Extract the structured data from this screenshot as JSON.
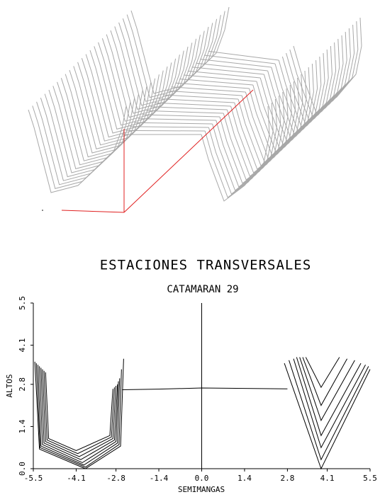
{
  "chart_data": {
    "type": "line",
    "title": "ESTACIONES TRANSVERSALES",
    "subtitle": "CATAMARAN 29",
    "x_label": "SEMIMANGAS",
    "y_label": "ALTOS",
    "xlim": [
      -5.5,
      5.5
    ],
    "ylim": [
      0,
      5.5
    ],
    "xticks": [
      -5.5,
      -4.1,
      -2.8,
      -1.4,
      {
        "value": 0,
        "label": "0.0"
      },
      1.4,
      2.8,
      4.1,
      5.5
    ],
    "yticks": [
      {
        "value": 0,
        "label": "0.0"
      },
      1.4,
      2.8,
      4.1,
      5.5
    ],
    "series": [
      {
        "color": "#000000",
        "x": [
          -5.45,
          -5.3,
          -3.8,
          -2.65,
          -2.55
        ],
        "values": [
          3.55,
          0.65,
          0.0,
          0.75,
          3.65
        ]
      },
      {
        "color": "#000000",
        "x": [
          -5.4,
          -5.28,
          -3.8,
          -2.7,
          -2.62
        ],
        "values": [
          3.5,
          0.7,
          0.05,
          0.8,
          3.3
        ]
      },
      {
        "color": "#000000",
        "x": [
          -5.35,
          -5.25,
          -3.85,
          -2.75,
          -2.68
        ],
        "values": [
          3.45,
          0.75,
          0.12,
          0.85,
          3.0
        ]
      },
      {
        "color": "#000000",
        "x": [
          -5.3,
          -5.2,
          -3.9,
          -2.8,
          -2.72
        ],
        "values": [
          3.4,
          0.8,
          0.2,
          0.9,
          2.9
        ]
      },
      {
        "color": "#000000",
        "x": [
          -5.25,
          -5.15,
          -3.95,
          -2.85,
          -2.75
        ],
        "values": [
          3.35,
          0.85,
          0.3,
          0.95,
          2.8
        ]
      },
      {
        "color": "#000000",
        "x": [
          -5.2,
          -5.1,
          -4.0,
          -2.9,
          -2.8
        ],
        "values": [
          3.3,
          0.9,
          0.4,
          1.0,
          2.75
        ]
      },
      {
        "color": "#000000",
        "x": [
          -5.15,
          -5.05,
          -4.05,
          -2.95,
          -2.85
        ],
        "values": [
          3.25,
          0.95,
          0.5,
          1.05,
          2.7
        ]
      },
      {
        "color": "#000000",
        "x": [
          -5.1,
          -5.0,
          -4.1,
          -3.0,
          -2.9
        ],
        "values": [
          3.2,
          1.0,
          0.6,
          1.1,
          2.65
        ]
      },
      {
        "color": "#000000",
        "x": [
          2.7,
          3.9,
          5.5
        ],
        "values": [
          3.5,
          0,
          3.3
        ]
      },
      {
        "color": "#000000",
        "x": [
          2.85,
          3.9,
          5.45
        ],
        "values": [
          3.6,
          0.3,
          3.4
        ]
      },
      {
        "color": "#000000",
        "x": [
          3.0,
          3.9,
          5.35
        ],
        "values": [
          3.65,
          0.7,
          3.45
        ]
      },
      {
        "color": "#000000",
        "x": [
          3.1,
          3.9,
          5.2
        ],
        "values": [
          3.7,
          1.1,
          3.5
        ]
      },
      {
        "color": "#000000",
        "x": [
          3.2,
          3.9,
          5.0
        ],
        "values": [
          3.7,
          1.6,
          3.6
        ]
      },
      {
        "color": "#000000",
        "x": [
          3.3,
          3.9,
          4.75
        ],
        "values": [
          3.7,
          2.1,
          3.65
        ]
      },
      {
        "color": "#000000",
        "x": [
          3.4,
          3.9,
          4.5
        ],
        "values": [
          3.7,
          2.7,
          3.7
        ]
      },
      {
        "color": "#000000",
        "x": [
          -2.6,
          -1.4,
          0,
          2.8
        ],
        "values": [
          2.62,
          2.64,
          2.68,
          2.65
        ]
      }
    ]
  }
}
